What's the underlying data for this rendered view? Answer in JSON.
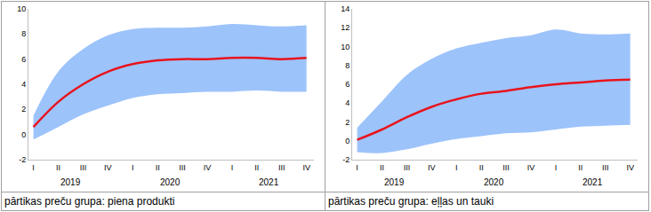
{
  "chart_data": [
    {
      "type": "line",
      "caption": "pārtikas preču grupa: piena produkti",
      "categories": [
        "I",
        "II",
        "III",
        "IV",
        "I",
        "II",
        "III",
        "IV",
        "I",
        "II",
        "III",
        "IV"
      ],
      "category_groups": [
        "2019",
        "2019",
        "2019",
        "2019",
        "2020",
        "2020",
        "2020",
        "2020",
        "2021",
        "2021",
        "2021",
        "2021"
      ],
      "series": [
        {
          "type": "band",
          "color": "#9dc3fb",
          "lower": [
            -0.4,
            0.6,
            1.6,
            2.3,
            2.9,
            3.2,
            3.3,
            3.4,
            3.4,
            3.5,
            3.4,
            3.4
          ],
          "upper": [
            1.5,
            5.0,
            6.8,
            7.9,
            8.4,
            8.5,
            8.5,
            8.6,
            8.8,
            8.7,
            8.6,
            8.7
          ]
        },
        {
          "type": "line",
          "color": "#e8141c",
          "values": [
            0.6,
            2.6,
            4.0,
            5.0,
            5.6,
            5.9,
            6.0,
            6.0,
            6.1,
            6.1,
            6.0,
            6.1
          ]
        }
      ],
      "ylim": [
        -2,
        10
      ],
      "yticks": [
        -2,
        0,
        2,
        4,
        6,
        8,
        10
      ],
      "grid": false
    },
    {
      "type": "line",
      "caption": "pārtikas preču grupa: eļļas un tauki",
      "categories": [
        "I",
        "II",
        "III",
        "IV",
        "I",
        "II",
        "III",
        "IV",
        "I",
        "II",
        "III",
        "IV"
      ],
      "category_groups": [
        "2019",
        "2019",
        "2019",
        "2019",
        "2020",
        "2020",
        "2020",
        "2020",
        "2021",
        "2021",
        "2021",
        "2021"
      ],
      "series": [
        {
          "type": "band",
          "color": "#9dc3fb",
          "lower": [
            -1.2,
            -1.3,
            -0.9,
            -0.3,
            0.2,
            0.5,
            0.8,
            0.9,
            1.2,
            1.5,
            1.6,
            1.7
          ],
          "upper": [
            1.4,
            4.2,
            7.0,
            8.7,
            9.8,
            10.4,
            10.9,
            11.2,
            11.8,
            11.4,
            11.3,
            11.4
          ]
        },
        {
          "type": "line",
          "color": "#e8141c",
          "values": [
            0.1,
            1.2,
            2.5,
            3.6,
            4.4,
            5.0,
            5.3,
            5.7,
            6.0,
            6.2,
            6.4,
            6.5
          ]
        }
      ],
      "ylim": [
        -2,
        14
      ],
      "yticks": [
        -2,
        0,
        2,
        4,
        6,
        8,
        10,
        12,
        14
      ],
      "grid": false
    }
  ]
}
